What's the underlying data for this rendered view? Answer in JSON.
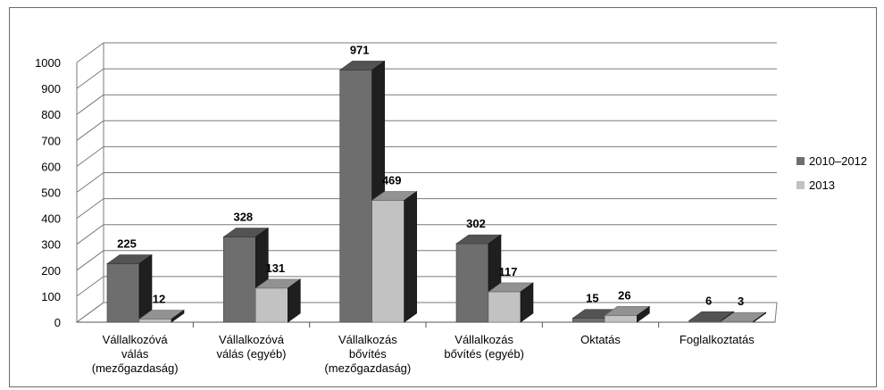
{
  "chart_data": {
    "type": "bar",
    "title": "",
    "xlabel": "",
    "ylabel": "",
    "ylim": [
      0,
      1000
    ],
    "yticks": [
      0,
      100,
      200,
      300,
      400,
      500,
      600,
      700,
      800,
      900,
      1000
    ],
    "grid": true,
    "legend_position": "right",
    "categories": [
      "Vállalkozóvá válás (mezőgazdaság)",
      "Vállalkozóvá válás (egyéb)",
      "Vállalkozás bővítés (mezőgazdaság)",
      "Vállalkozás bővítés (egyéb)",
      "Oktatás",
      "Foglalkoztatás"
    ],
    "category_lines": [
      [
        "Vállalkozóvá",
        "válás",
        "(mezőgazdaság)"
      ],
      [
        "Vállalkozóvá",
        "válás (egyéb)"
      ],
      [
        "Vállalkozás",
        "bővítés",
        "(mezőgazdaság)"
      ],
      [
        "Vállalkozás",
        "bővítés (egyéb)"
      ],
      [
        "Oktatás"
      ],
      [
        "Foglalkoztatás"
      ]
    ],
    "series": [
      {
        "name": "2010–2012",
        "values": [
          225,
          328,
          971,
          302,
          15,
          6
        ],
        "color": "#6e6e6e"
      },
      {
        "name": "2013",
        "values": [
          12,
          131,
          469,
          117,
          26,
          3
        ],
        "color": "#c2c2c2"
      }
    ]
  }
}
